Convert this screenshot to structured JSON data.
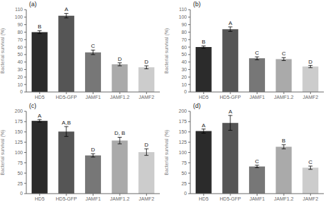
{
  "chart_data": [
    {
      "type": "bar",
      "title": "(a)",
      "ylabel": "Bacterial survival (%)",
      "categories": [
        "HD5",
        "HD5-GFP",
        "JAMF1",
        "JAMF1.2",
        "JAMF2"
      ],
      "values": [
        80,
        102,
        53,
        37,
        33
      ],
      "errors": [
        2,
        3,
        3,
        2,
        2
      ],
      "colors": [
        "#2b2b2b",
        "#555555",
        "#777777",
        "#aaaaaa",
        "#cccccc"
      ],
      "annotations": [
        "B",
        "A",
        "C",
        "D",
        "D"
      ],
      "ylim": [
        0,
        110
      ],
      "yticks": [
        0,
        10,
        20,
        30,
        40,
        50,
        60,
        70,
        80,
        90,
        100,
        110
      ],
      "grid": false
    },
    {
      "type": "bar",
      "title": "(b)",
      "ylabel": "Bacterial survival (%)",
      "categories": [
        "HD5",
        "HD5-GFP",
        "JAMF1",
        "JAMF1.2",
        "JAMF2"
      ],
      "values": [
        60,
        84,
        45,
        44,
        34
      ],
      "errors": [
        1.5,
        3,
        2,
        2,
        1.5
      ],
      "colors": [
        "#2b2b2b",
        "#555555",
        "#777777",
        "#aaaaaa",
        "#cccccc"
      ],
      "annotations": [
        "B",
        "A",
        "C",
        "C",
        "D"
      ],
      "ylim": [
        0,
        110
      ],
      "yticks": [
        0,
        10,
        20,
        30,
        40,
        50,
        60,
        70,
        80,
        90,
        100,
        110
      ],
      "grid": false
    },
    {
      "type": "bar",
      "title": "(c)",
      "ylabel": "Bacterial survival (%)",
      "categories": [
        "HD5",
        "HD5-GFP",
        "JAMF1",
        "JAMF1.2",
        "JAMF2"
      ],
      "values": [
        177,
        151,
        93,
        129,
        101
      ],
      "errors": [
        3,
        12,
        4,
        8,
        8
      ],
      "colors": [
        "#2b2b2b",
        "#555555",
        "#777777",
        "#aaaaaa",
        "#cccccc"
      ],
      "annotations": [
        "A",
        "A,B",
        "D",
        "D, B",
        "D"
      ],
      "ylim": [
        0,
        200
      ],
      "yticks": [
        0,
        25,
        50,
        75,
        100,
        125,
        150,
        175,
        200
      ],
      "grid": false
    },
    {
      "type": "bar",
      "title": "(d)",
      "ylabel": "Bacterial survival (%)",
      "categories": [
        "HD5",
        "HD5-GFP",
        "JAMF1",
        "JAMF1.2",
        "JAMF2"
      ],
      "values": [
        152,
        172,
        66,
        114,
        63
      ],
      "errors": [
        5,
        18,
        3,
        5,
        4
      ],
      "colors": [
        "#2b2b2b",
        "#555555",
        "#777777",
        "#aaaaaa",
        "#cccccc"
      ],
      "annotations": [
        "A",
        "A",
        "C",
        "B",
        "C"
      ],
      "ylim": [
        0,
        200
      ],
      "yticks": [
        0,
        25,
        50,
        75,
        100,
        125,
        150,
        175,
        200
      ],
      "grid": false
    }
  ]
}
